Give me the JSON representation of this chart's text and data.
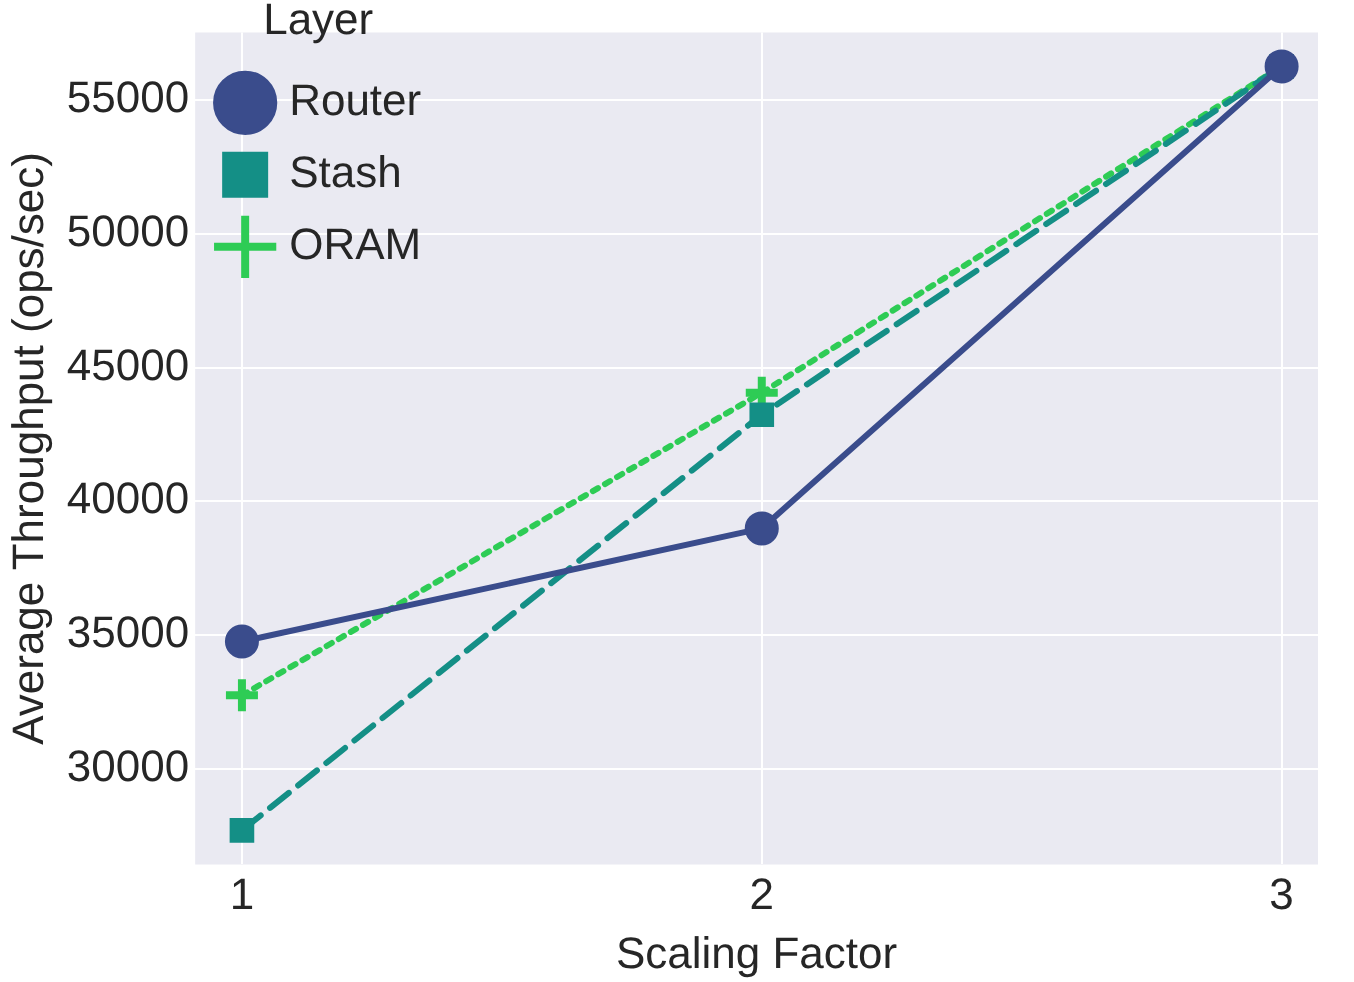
{
  "chart_data": {
    "type": "line",
    "xlabel": "Scaling Factor",
    "ylabel": "Average Throughput (ops/sec)",
    "legend_title": "Layer",
    "legend": "top left",
    "grid": true,
    "x": [
      1,
      2,
      3
    ],
    "xlim": [
      0.91,
      3.07
    ],
    "xticks": [
      1,
      2,
      3
    ],
    "ylim": [
      26430,
      57530
    ],
    "yticks": [
      30000,
      35000,
      40000,
      45000,
      50000,
      55000
    ],
    "series": [
      {
        "name": "Router",
        "color": "#3a4c8c",
        "marker": "circle",
        "line_style": "solid",
        "values": [
          34760,
          38990,
          56260
        ]
      },
      {
        "name": "Stash",
        "color": "#148f86",
        "marker": "square",
        "line_style": "dashed",
        "values": [
          27700,
          43240,
          56260
        ]
      },
      {
        "name": "ORAM",
        "color": "#2ecc55",
        "marker": "cross",
        "line_style": "dotted",
        "values": [
          32750,
          44060,
          56260
        ]
      }
    ]
  }
}
